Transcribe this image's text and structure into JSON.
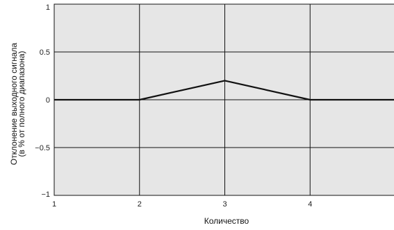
{
  "chart_data": {
    "type": "line",
    "title": "",
    "xlabel": "Количество",
    "ylabel_lines": [
      "Отклонение выходного сигнала",
      "(в % от полного диапазона)"
    ],
    "xlim": [
      1,
      5
    ],
    "ylim": [
      -1,
      1
    ],
    "xticks": [
      1,
      2,
      3,
      4
    ],
    "xtick_labels": [
      "1",
      "2",
      "3",
      "4"
    ],
    "yticks": [
      1,
      0.5,
      0,
      -0.5,
      -1
    ],
    "ytick_labels": [
      "1",
      "0.5",
      "0",
      "−0.5",
      "−1"
    ],
    "grid": true,
    "series": [
      {
        "x": [
          1,
          2,
          3,
          4,
          5
        ],
        "y": [
          0,
          0,
          0.2,
          0,
          0
        ]
      }
    ]
  },
  "colors": {
    "plot_background": "#e6e6e6",
    "grid": "#111111",
    "line": "#111111",
    "frame": "#111111"
  }
}
